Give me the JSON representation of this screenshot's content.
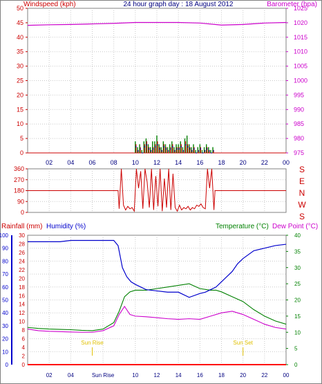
{
  "page": {
    "title": "24 hour graph day : 18 August 2012",
    "border_color": "#808080"
  },
  "chart_data": [
    {
      "id": "wind-baro",
      "type": "line",
      "title": "24 hour graph day : 18 August 2012",
      "left_axis_label": "Windspeed (kph)",
      "right_axis_label": "Barometer (hpa)",
      "left_ylim": [
        0,
        50
      ],
      "left_ticks": [
        0,
        5,
        10,
        15,
        20,
        25,
        30,
        35,
        40,
        45,
        50
      ],
      "right_ylim": [
        975,
        1025
      ],
      "right_ticks": [
        975,
        980,
        985,
        990,
        995,
        1000,
        1005,
        1010,
        1015,
        1020,
        1025
      ],
      "x_tick_labels": [
        "02",
        "04",
        "06",
        "08",
        "10",
        "12",
        "14",
        "16",
        "18",
        "20",
        "22",
        "00"
      ],
      "grid": true,
      "colors": {
        "wind": "#cc0000",
        "gust": "#008000",
        "wind_avg": "#0000cc",
        "barometer": "#cc00cc",
        "axis_left": "#cc0000",
        "axis_right": "#cc00cc",
        "title": "#000080"
      },
      "series": [
        {
          "role": "barometer",
          "x": [
            0,
            2,
            4,
            6,
            8,
            10,
            12,
            14,
            16,
            18,
            20,
            22,
            24
          ],
          "values": [
            1019.1,
            1019.3,
            1019.4,
            1019.6,
            1019.8,
            1020.1,
            1020.1,
            1020.1,
            1019.9,
            1019.2,
            1019.4,
            1019.9,
            1020.1
          ]
        },
        {
          "role": "windspeed",
          "x": [
            10.0,
            10.2,
            10.4,
            10.6,
            10.8,
            11.0,
            11.2,
            11.4,
            11.6,
            11.8,
            12.0,
            12.2,
            12.4,
            12.6,
            12.8,
            13.0,
            13.2,
            13.4,
            13.6,
            13.8,
            14.0,
            14.2,
            14.4,
            14.6,
            14.8,
            15.0,
            15.2,
            15.4,
            15.6,
            15.8,
            16.0,
            16.2,
            16.4,
            16.6,
            16.8,
            17.0,
            17.2
          ],
          "values": [
            3,
            1,
            2,
            0,
            3,
            4,
            2,
            1,
            2,
            3,
            4,
            2,
            1,
            3,
            2,
            1,
            2,
            3,
            1,
            2,
            2,
            3,
            1,
            4,
            3,
            2,
            1,
            2,
            0,
            1,
            2,
            0,
            1,
            2,
            1,
            0,
            1
          ]
        },
        {
          "role": "gust",
          "x": [
            10.0,
            10.2,
            10.4,
            10.6,
            10.8,
            11.0,
            11.2,
            11.4,
            11.6,
            11.8,
            12.0,
            12.2,
            12.4,
            12.6,
            12.8,
            13.0,
            13.2,
            13.4,
            13.6,
            13.8,
            14.0,
            14.2,
            14.4,
            14.6,
            14.8,
            15.0,
            15.2,
            15.4,
            15.6,
            15.8,
            16.0,
            16.2,
            16.4,
            16.6,
            16.8,
            17.0,
            17.2
          ],
          "values": [
            4,
            2,
            3,
            1,
            4,
            5,
            3,
            2,
            4,
            4,
            6,
            3,
            2,
            4,
            3,
            2,
            3,
            4,
            2,
            3,
            3,
            4,
            2,
            5,
            6,
            3,
            2,
            3,
            1,
            2,
            3,
            1,
            2,
            3,
            2,
            1,
            2
          ]
        }
      ]
    },
    {
      "id": "wind-dir",
      "type": "line",
      "left_ylim": [
        0,
        360
      ],
      "left_ticks": [
        0,
        90,
        180,
        270,
        360
      ],
      "right_labels": [
        "S",
        "E",
        "N",
        "W",
        "S"
      ],
      "grid": true,
      "colors": {
        "direction": "#cc0000",
        "axis_left": "#cc0000",
        "labels_right": "#cc0000"
      },
      "series": [
        {
          "role": "direction",
          "x": [
            0,
            8.4,
            8.5,
            8.7,
            8.9,
            9.1,
            9.3,
            9.5,
            9.7,
            9.9,
            10.1,
            10.3,
            10.5,
            10.7,
            10.9,
            11.1,
            11.3,
            11.5,
            11.7,
            11.9,
            12.1,
            12.3,
            12.5,
            12.7,
            12.9,
            13.1,
            13.3,
            13.5,
            13.7,
            13.9,
            14.1,
            14.3,
            14.5,
            14.7,
            14.9,
            15.1,
            15.3,
            15.5,
            15.7,
            15.9,
            16.1,
            16.3,
            16.5,
            16.7,
            16.9,
            17.1,
            17.3,
            17.4,
            24
          ],
          "values": [
            180,
            180,
            30,
            360,
            60,
            20,
            50,
            30,
            40,
            10,
            360,
            200,
            340,
            30,
            360,
            250,
            40,
            360,
            20,
            300,
            50,
            360,
            10,
            280,
            40,
            360,
            20,
            320,
            40,
            10,
            60,
            20,
            40,
            30,
            50,
            20,
            40,
            30,
            60,
            50,
            70,
            40,
            30,
            360,
            200,
            360,
            20,
            180,
            180
          ]
        }
      ]
    },
    {
      "id": "rain-hum-temp",
      "type": "line",
      "labels": {
        "rainfall": "Rainfall (mm)",
        "humidity": "Humidity (%)",
        "temperature": "Temperature (°C)",
        "dewpoint": "Dew Point (°C)"
      },
      "rain_ticks": [
        0,
        2,
        4,
        6,
        8,
        10,
        12,
        14,
        16,
        18,
        20,
        22,
        24,
        26,
        28,
        30
      ],
      "humidity_ticks": [
        0,
        10,
        20,
        30,
        40,
        50,
        60,
        70,
        80,
        90,
        100
      ],
      "temp_ticks": [
        0,
        5,
        10,
        15,
        20,
        25,
        30,
        35,
        40
      ],
      "rain_ylim": [
        0,
        30
      ],
      "humidity_ylim": [
        0,
        100
      ],
      "temp_ylim": [
        0,
        40
      ],
      "x_tick_labels": [
        "02",
        "04",
        "Sun Rise",
        "10",
        "12",
        "14",
        "16",
        "18",
        "20",
        "22",
        "00"
      ],
      "sun_rise_label": "Sun Rise",
      "sun_set_label": "Sun Set",
      "sun_rise_hour": 6,
      "sun_set_hour": 20,
      "grid": true,
      "colors": {
        "humidity": "#0000cc",
        "temperature": "#008000",
        "dewpoint": "#cc00cc",
        "rainfall": "#ff0000",
        "sun": "#e0c000",
        "rain_axis": "#cc0000",
        "humidity_axis": "#0000cc",
        "temp_axis": "#008000"
      },
      "series": [
        {
          "role": "humidity",
          "x": [
            0,
            1,
            2,
            3,
            4,
            5,
            6,
            7,
            8,
            8.4,
            8.8,
            9.2,
            9.6,
            10,
            10.5,
            11,
            12,
            13,
            14,
            15,
            16,
            16.5,
            17,
            17.5,
            18,
            18.5,
            19,
            19.5,
            20,
            21,
            22,
            23,
            24
          ],
          "values": [
            95,
            95,
            95,
            95,
            96,
            96,
            96,
            96,
            96,
            92,
            75,
            68,
            64,
            62,
            60,
            58,
            57,
            56,
            56,
            52,
            55,
            56,
            58,
            60,
            64,
            68,
            72,
            78,
            82,
            88,
            90,
            92,
            93
          ]
        },
        {
          "role": "temperature",
          "x": [
            0,
            1,
            2,
            3,
            4,
            5,
            6,
            7,
            8,
            8.5,
            9,
            9.5,
            10,
            11,
            12,
            13,
            14,
            15,
            16,
            17,
            17.5,
            18,
            19,
            20,
            21,
            22,
            23,
            24
          ],
          "values": [
            11.5,
            11.2,
            11.0,
            10.9,
            10.8,
            10.6,
            10.5,
            11.0,
            13.0,
            16.5,
            21.0,
            22.5,
            23.0,
            23.0,
            23.5,
            24.0,
            24.5,
            25.0,
            23.5,
            23.0,
            23.0,
            22.5,
            21.0,
            19.5,
            17.0,
            15.0,
            13.5,
            12.5
          ]
        },
        {
          "role": "dewpoint",
          "x": [
            0,
            1,
            2,
            3,
            4,
            5,
            6,
            7,
            8,
            8.5,
            9,
            9.5,
            10,
            11,
            12,
            13,
            14,
            15,
            16,
            17,
            18,
            19,
            20,
            21,
            22,
            23,
            24
          ],
          "values": [
            11.0,
            10.5,
            10.3,
            10.2,
            10.1,
            10.0,
            10.0,
            10.5,
            12.0,
            15.5,
            18.0,
            15.5,
            15.0,
            14.8,
            14.5,
            14.2,
            14.0,
            14.2,
            14.0,
            15.0,
            16.0,
            16.5,
            15.5,
            14.0,
            12.5,
            11.5,
            11.0
          ]
        },
        {
          "role": "rainfall",
          "x": [
            0,
            24
          ],
          "values": [
            0,
            0
          ]
        }
      ]
    }
  ]
}
